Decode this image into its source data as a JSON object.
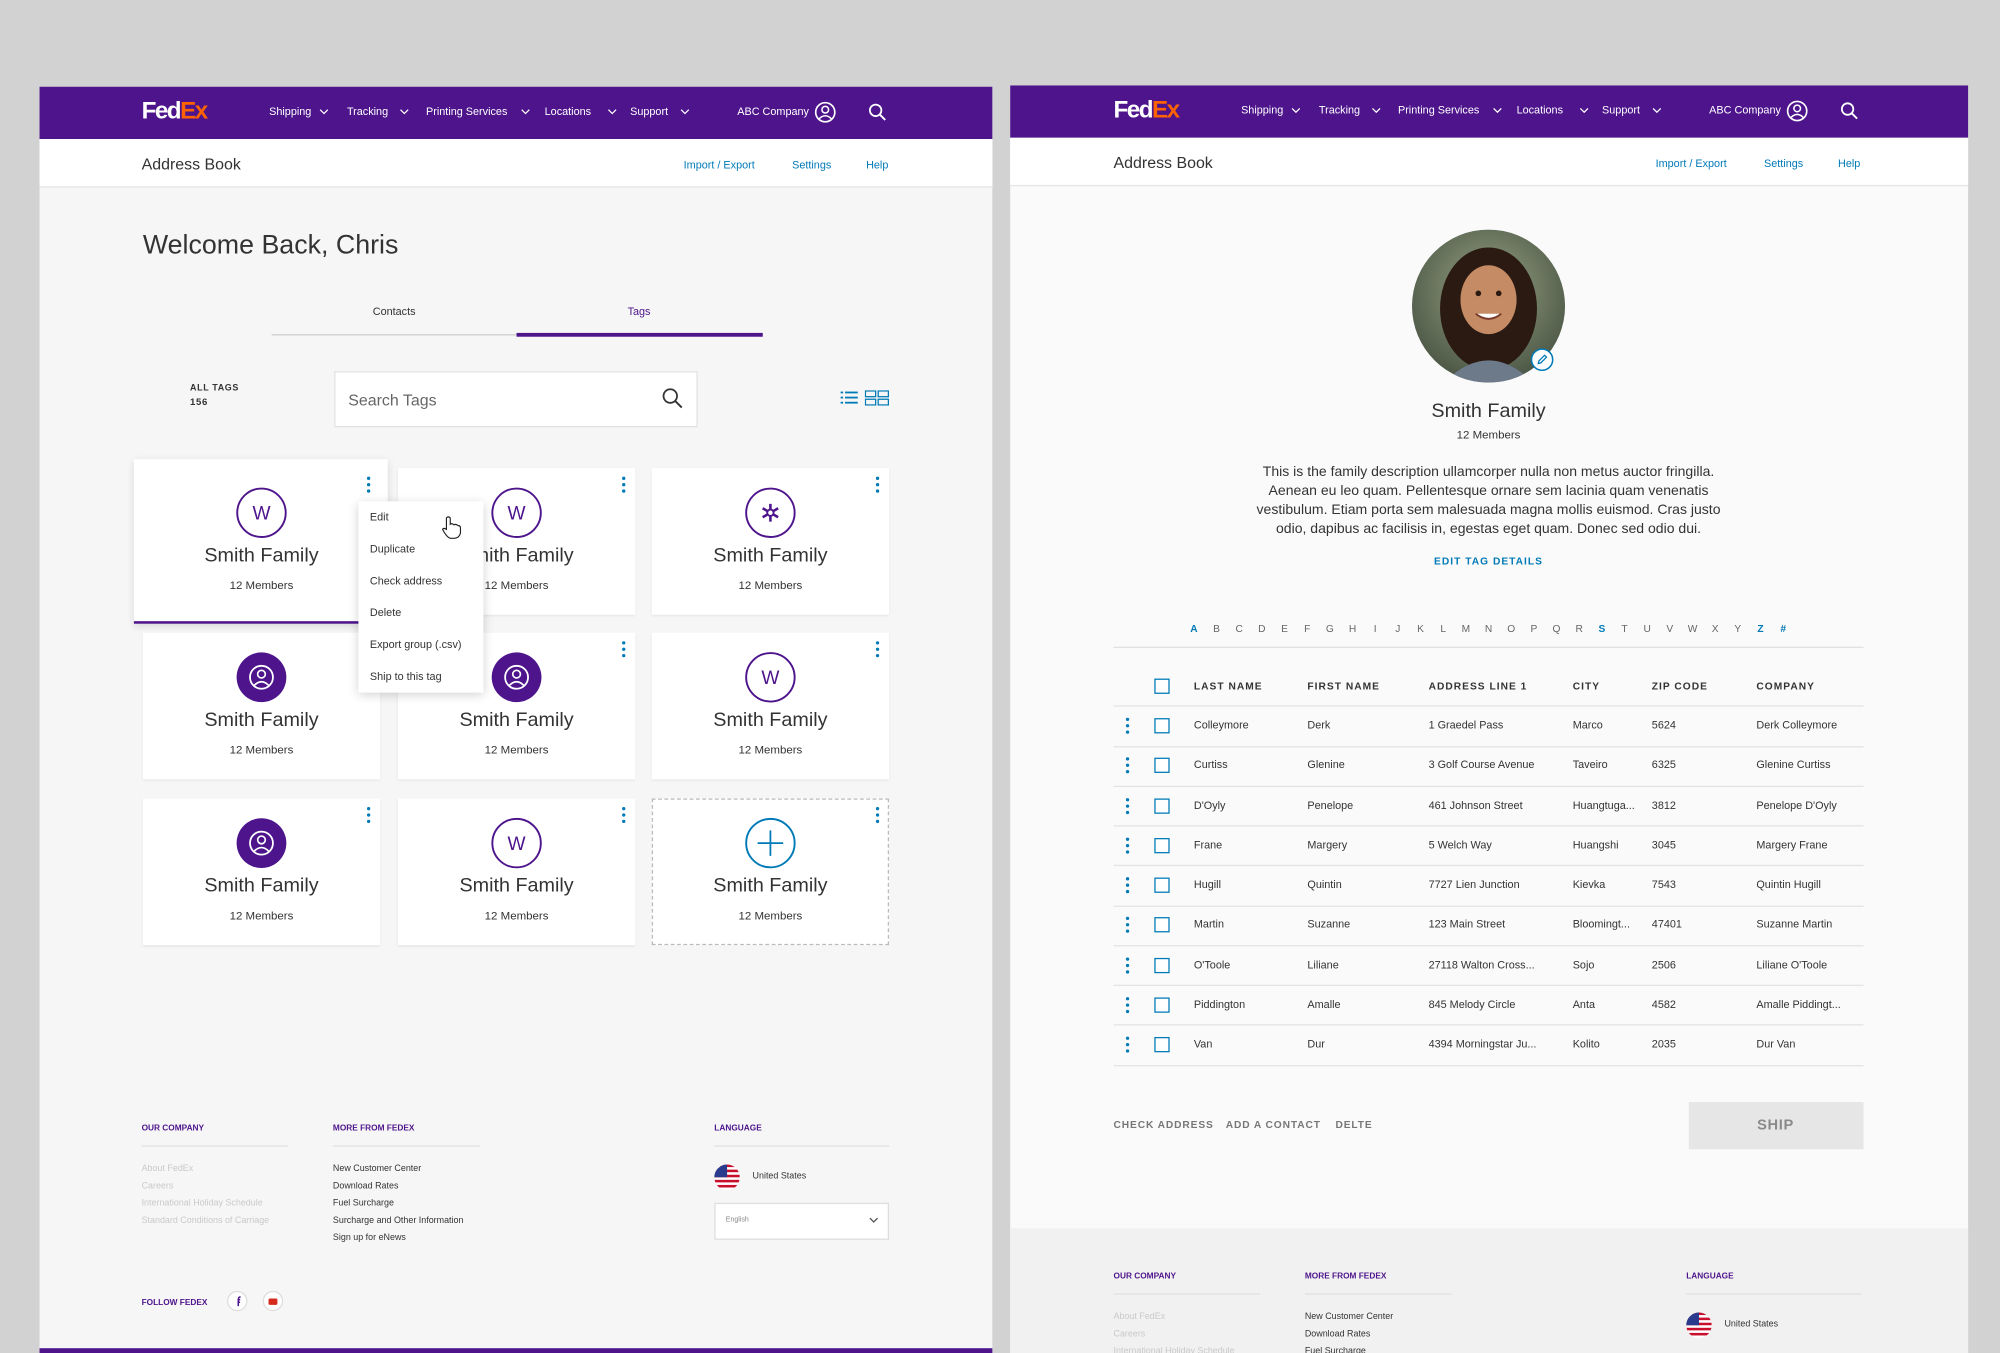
{
  "nav": {
    "logo_fed": "Fed",
    "logo_ex": "Ex",
    "items": [
      "Shipping",
      "Tracking",
      "Printing Services",
      "Locations",
      "Support"
    ],
    "account": "ABC Company"
  },
  "subheader": {
    "title": "Address Book",
    "links": [
      "Import / Export",
      "Settings",
      "Help"
    ]
  },
  "footer": {
    "our_company": {
      "heading": "OUR COMPANY",
      "links": [
        "About FedEx",
        "Careers",
        "International Holiday Schedule",
        "Standard Conditions of Carriage"
      ]
    },
    "more": {
      "heading": "MORE FROM FEDEX",
      "links": [
        "New Customer Center",
        "Download Rates",
        "Fuel Surcharge",
        "Surcharge and Other Information",
        "Sign up for eNews"
      ]
    },
    "language": {
      "heading": "LANGUAGE",
      "country": "United States",
      "select": "English"
    },
    "follow": "FOLLOW FEDEX"
  },
  "tags_page": {
    "welcome": "Welcome Back, Chris",
    "tabs": [
      "Contacts",
      "Tags"
    ],
    "all_tags_label": "ALL TAGS",
    "all_tags_count": 156,
    "search_placeholder": "Search Tags",
    "cards": [
      {
        "letter": "W",
        "name": "Smith Family",
        "members": "12 Members"
      },
      {
        "letter": "W",
        "name": "Smith Family",
        "members": "12 Members"
      },
      {
        "name": "Smith Family",
        "members": "12 Members"
      },
      {
        "name": "Smith Family",
        "members": "12 Members"
      },
      {
        "name": "Smith Family",
        "members": "12 Members"
      },
      {
        "letter": "W",
        "name": "Smith Family",
        "members": "12 Members"
      },
      {
        "name": "Smith Family",
        "members": "12 Members"
      },
      {
        "letter": "W",
        "name": "Smith Family",
        "members": "12 Members"
      },
      {
        "name": "Smith Family",
        "members": "12 Members"
      }
    ],
    "menu": [
      "Edit",
      "Duplicate",
      "Check address",
      "Delete",
      "Export group (.csv)",
      "Ship to this tag"
    ]
  },
  "detail_page": {
    "name": "Smith Family",
    "members": "12 Members",
    "description": "This is the family description ullamcorper nulla non metus auctor fringilla. Aenean eu leo quam. Pellentesque ornare sem lacinia quam venenatis vestibulum. Etiam porta sem malesuada magna mollis euismod. Cras justo odio, dapibus ac facilisis in, egestas eget quam. Donec sed odio dui.",
    "edit_link": "EDIT TAG DETAILS",
    "alphabet": [
      "A",
      "B",
      "C",
      "D",
      "E",
      "F",
      "G",
      "H",
      "I",
      "J",
      "K",
      "L",
      "M",
      "N",
      "O",
      "P",
      "Q",
      "R",
      "S",
      "T",
      "U",
      "V",
      "W",
      "X",
      "Y",
      "Z",
      "#"
    ],
    "highlighted": [
      "A",
      "S",
      "Z",
      "#"
    ],
    "table": {
      "headers": [
        "LAST NAME",
        "FIRST NAME",
        "ADDRESS LINE 1",
        "CITY",
        "ZIP CODE",
        "COMPANY"
      ],
      "rows": [
        [
          "Colleymore",
          "Derk",
          "1 Graedel Pass",
          "Marco",
          "5624",
          "Derk Colleymore"
        ],
        [
          "Curtiss",
          "Glenine",
          "3 Golf Course Avenue",
          "Taveiro",
          "6325",
          "Glenine Curtiss"
        ],
        [
          "D'Oyly",
          "Penelope",
          "461 Johnson Street",
          "Huangtuga...",
          "3812",
          "Penelope D'Oyly"
        ],
        [
          "Frane",
          "Margery",
          "5 Welch Way",
          "Huangshi",
          "3045",
          "Margery Frane"
        ],
        [
          "Hugill",
          "Quintin",
          "7727 Lien Junction",
          "Kievka",
          "7543",
          "Quintin Hugill"
        ],
        [
          "Martin",
          "Suzanne",
          "123 Main Street",
          "Bloomingt...",
          "47401",
          "Suzanne Martin"
        ],
        [
          "O'Toole",
          "Liliane",
          "27118 Walton Cross...",
          "Sojo",
          "2506",
          "Liliane O'Toole"
        ],
        [
          "Piddington",
          "Amalle",
          "845 Melody Circle",
          "Anta",
          "4582",
          "Amalle Piddingt..."
        ],
        [
          "Van",
          "Dur",
          "4394 Morningstar Ju...",
          "Kolito",
          "2035",
          "Dur Van"
        ]
      ]
    },
    "actions": [
      "CHECK ADDRESS",
      "ADD A CONTACT",
      "DELTE"
    ],
    "ship": "SHIP"
  }
}
